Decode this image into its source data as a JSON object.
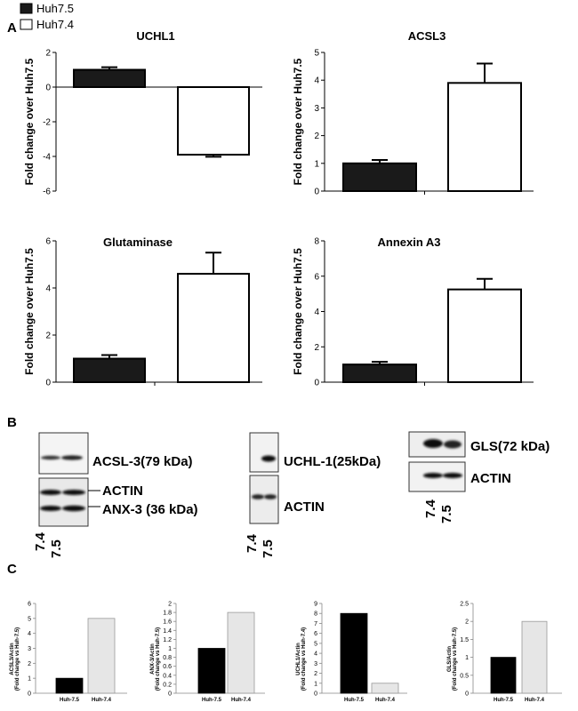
{
  "panel_labels": {
    "a": "A",
    "b": "B",
    "c": "C"
  },
  "legend": {
    "items": [
      {
        "label": "Huh7.5",
        "color": "#1a1a1a"
      },
      {
        "label": "Huh7.4",
        "color": "#ffffff"
      }
    ]
  },
  "colors": {
    "dark": "#1a1a1a",
    "open": "#ffffff",
    "light_gray": "#e6e6e6",
    "black": "#000000"
  },
  "chart_data": [
    {
      "id": "A1",
      "type": "bar",
      "title": "UCHL1",
      "ylabel": "Fold change over Huh7.5",
      "categories": [
        "Huh7.5",
        "Huh7.4"
      ],
      "values": [
        1.0,
        -3.9
      ],
      "errors": [
        0.15,
        0.12
      ],
      "ylim": [
        -6,
        2
      ],
      "yticks": [
        -6,
        -4,
        -2,
        0,
        2
      ]
    },
    {
      "id": "A2",
      "type": "bar",
      "title": "ACSL3",
      "ylabel": "Fold change over Huh7.5",
      "categories": [
        "Huh7.5",
        "Huh7.4"
      ],
      "values": [
        1.0,
        3.9
      ],
      "errors": [
        0.12,
        0.7
      ],
      "ylim": [
        0,
        5
      ],
      "yticks": [
        0,
        1,
        2,
        3,
        4,
        5
      ]
    },
    {
      "id": "A3",
      "type": "bar",
      "title": "Glutaminase",
      "ylabel": "Fold change over Huh7.5",
      "categories": [
        "Huh7.5",
        "Huh7.4"
      ],
      "values": [
        1.0,
        4.6
      ],
      "errors": [
        0.15,
        0.9
      ],
      "ylim": [
        0,
        6
      ],
      "yticks": [
        0,
        2,
        4,
        6
      ]
    },
    {
      "id": "A4",
      "type": "bar",
      "title": "Annexin A3",
      "ylabel": "Fold change over Huh7.5",
      "categories": [
        "Huh7.5",
        "Huh7.4"
      ],
      "values": [
        1.0,
        5.25
      ],
      "errors": [
        0.15,
        0.6
      ],
      "ylim": [
        0,
        8
      ],
      "yticks": [
        0,
        2,
        4,
        6,
        8
      ]
    },
    {
      "id": "C1",
      "type": "bar",
      "ylabel_lines": [
        "ACSL3/Actin",
        "(Fold change vs Huh-7.5)"
      ],
      "categories": [
        "Huh-7.5",
        "Huh-7.4"
      ],
      "values": [
        1.0,
        5.0
      ],
      "ylim": [
        0,
        6
      ],
      "yticks": [
        0,
        1,
        2,
        3,
        4,
        5,
        6
      ]
    },
    {
      "id": "C2",
      "type": "bar",
      "ylabel_lines": [
        "ANX-3/Actin",
        "(Fold change vs Huh-7.5)"
      ],
      "categories": [
        "Huh-7.5",
        "Huh-7.4"
      ],
      "values": [
        1.0,
        1.8
      ],
      "ylim": [
        0,
        2
      ],
      "yticks": [
        0,
        0.2,
        0.4,
        0.6,
        0.8,
        1,
        1.2,
        1.4,
        1.6,
        1.8,
        2
      ]
    },
    {
      "id": "C3",
      "type": "bar",
      "ylabel_lines": [
        "UCHL1/Actin",
        "(Fold change vs Huh-7.4)"
      ],
      "categories": [
        "Huh-7.5",
        "Huh-7.4"
      ],
      "values": [
        8.0,
        1.0
      ],
      "ylim": [
        0,
        9
      ],
      "yticks": [
        0,
        1,
        2,
        3,
        4,
        5,
        6,
        7,
        8,
        9
      ]
    },
    {
      "id": "C4",
      "type": "bar",
      "ylabel_lines": [
        "GLS/Actin",
        "(Fold change vs Huh-7.5)"
      ],
      "categories": [
        "Huh-7.5",
        "Huh-7.4"
      ],
      "values": [
        1.0,
        2.0
      ],
      "ylim": [
        0,
        2.5
      ],
      "yticks": [
        0,
        0.5,
        1,
        1.5,
        2,
        2.5
      ]
    }
  ],
  "blots": {
    "left": {
      "top_label": "ACSL-3(79 kDa)",
      "actin_label": "ACTIN",
      "anx_label": "ANX-3 (36 kDa)",
      "lanes": [
        "7.4",
        "7.5"
      ]
    },
    "middle": {
      "top_label": "UCHL-1(25kDa)",
      "actin_label": "ACTIN",
      "lanes": [
        "7.4",
        "7.5"
      ]
    },
    "right": {
      "top_label": "GLS(72 kDa)",
      "actin_label": "ACTIN",
      "lanes": [
        "7.4",
        "7.5"
      ]
    }
  }
}
